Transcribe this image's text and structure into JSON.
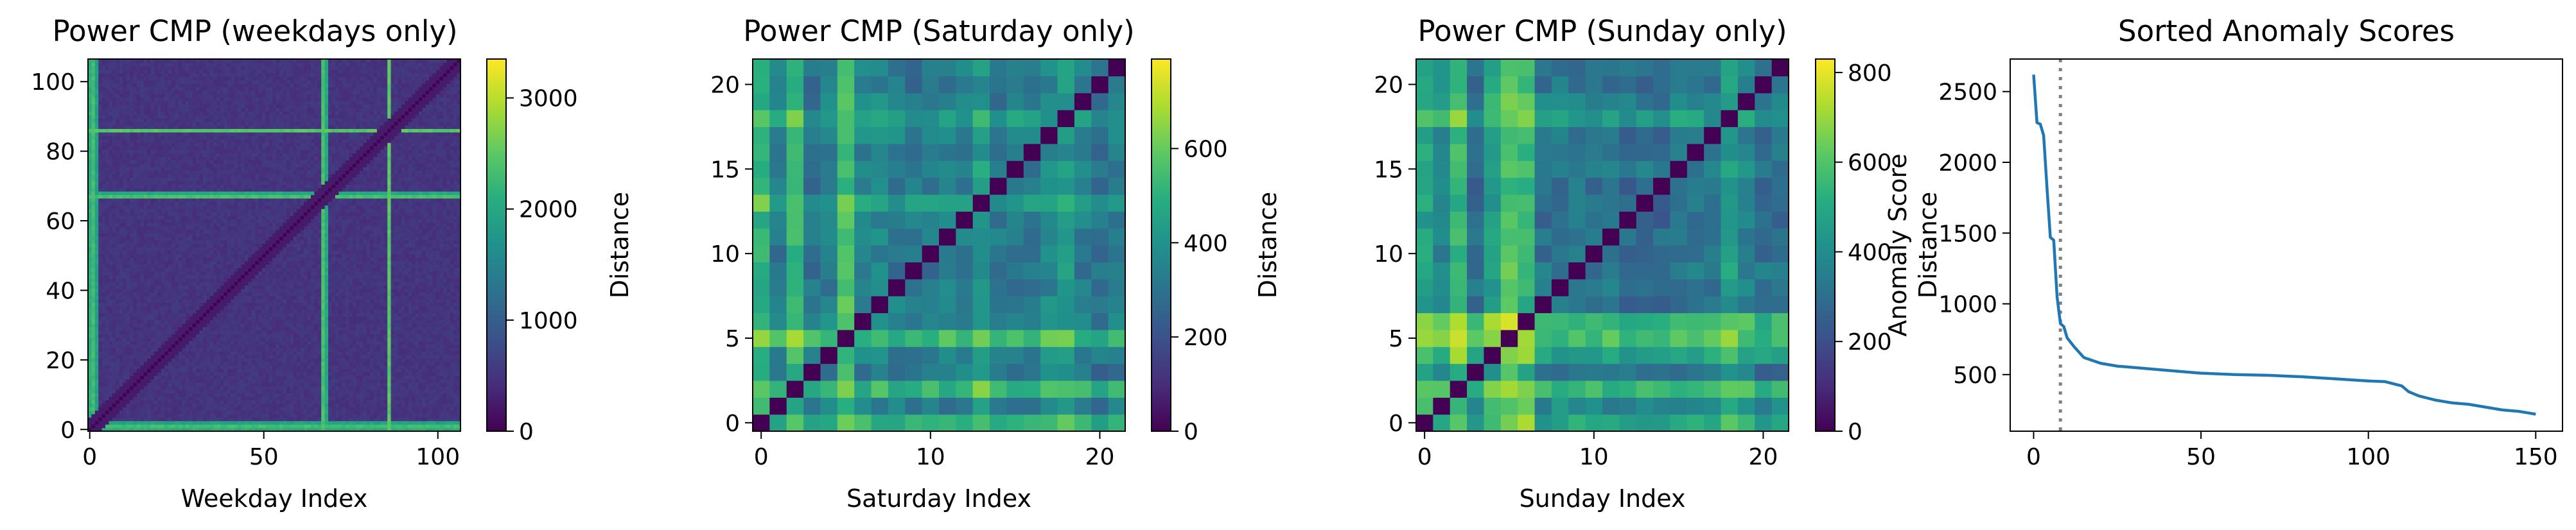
{
  "chart_data": [
    {
      "type": "heatmap",
      "title": "Power CMP (weekdays only)",
      "xlabel": "Weekday Index",
      "ylabel": "",
      "size": 107,
      "xlim": [
        0,
        107
      ],
      "ylim": [
        0,
        107
      ],
      "x_ticks": [
        0,
        50,
        100
      ],
      "y_ticks": [
        0,
        20,
        40,
        60,
        80,
        100
      ],
      "colorbar": {
        "label": "Distance",
        "range": [
          0,
          3350
        ],
        "ticks": [
          0,
          1000,
          2000,
          3000
        ]
      },
      "notes": {
        "bright_indices": [
          0,
          1,
          2,
          67,
          68,
          86
        ],
        "bright_values": [
          2100,
          2300,
          1900,
          2350,
          2000,
          2450
        ],
        "base_value": 500,
        "diagonal_value": 0
      }
    },
    {
      "type": "heatmap",
      "title": "Power CMP (Saturday only)",
      "xlabel": "Saturday Index",
      "ylabel": "",
      "size": 22,
      "xlim": [
        0,
        22
      ],
      "ylim": [
        0,
        22
      ],
      "x_ticks": [
        0,
        10,
        20
      ],
      "y_ticks": [
        0,
        5,
        10,
        15,
        20
      ],
      "colorbar": {
        "label": "Distance",
        "range": [
          0,
          790
        ],
        "ticks": [
          0,
          200,
          400,
          600
        ]
      },
      "row_profile": [
        620,
        330,
        650,
        300,
        360,
        700,
        350,
        380,
        310,
        300,
        310,
        330,
        350,
        520,
        300,
        330,
        280,
        380,
        500,
        330,
        280,
        330
      ]
    },
    {
      "type": "heatmap",
      "title": "Power CMP (Sunday only)",
      "xlabel": "Sunday Index",
      "ylabel": "",
      "size": 22,
      "xlim": [
        0,
        22
      ],
      "ylim": [
        0,
        22
      ],
      "x_ticks": [
        0,
        10,
        20
      ],
      "y_ticks": [
        0,
        5,
        10,
        15,
        20
      ],
      "colorbar": {
        "label": "Distance",
        "range": [
          0,
          830
        ],
        "ticks": [
          0,
          200,
          400,
          600,
          800
        ]
      },
      "row_profile": [
        600,
        450,
        720,
        300,
        600,
        790,
        720,
        300,
        330,
        350,
        300,
        310,
        280,
        300,
        260,
        350,
        320,
        300,
        560,
        400,
        300,
        310
      ]
    },
    {
      "type": "line",
      "title": "Sorted Anomaly Scores",
      "xlabel": "",
      "ylabel": "Anomaly Score",
      "xlim": [
        -7,
        158
      ],
      "ylim": [
        100,
        2730
      ],
      "x_ticks": [
        0,
        50,
        100,
        150
      ],
      "y_ticks": [
        500,
        1000,
        1500,
        2000,
        2500
      ],
      "vline_x": 8,
      "series": [
        {
          "name": "",
          "x": [
            0,
            1,
            2,
            3,
            4,
            5,
            6,
            7,
            8,
            9,
            10,
            12,
            15,
            20,
            25,
            30,
            40,
            50,
            60,
            70,
            80,
            90,
            100,
            105,
            110,
            112,
            115,
            120,
            125,
            130,
            135,
            140,
            145,
            150
          ],
          "y": [
            2620,
            2280,
            2270,
            2190,
            1820,
            1470,
            1450,
            1050,
            860,
            840,
            760,
            700,
            620,
            580,
            560,
            550,
            530,
            510,
            500,
            495,
            485,
            470,
            455,
            450,
            420,
            380,
            350,
            320,
            300,
            290,
            270,
            250,
            240,
            220
          ]
        }
      ]
    }
  ]
}
